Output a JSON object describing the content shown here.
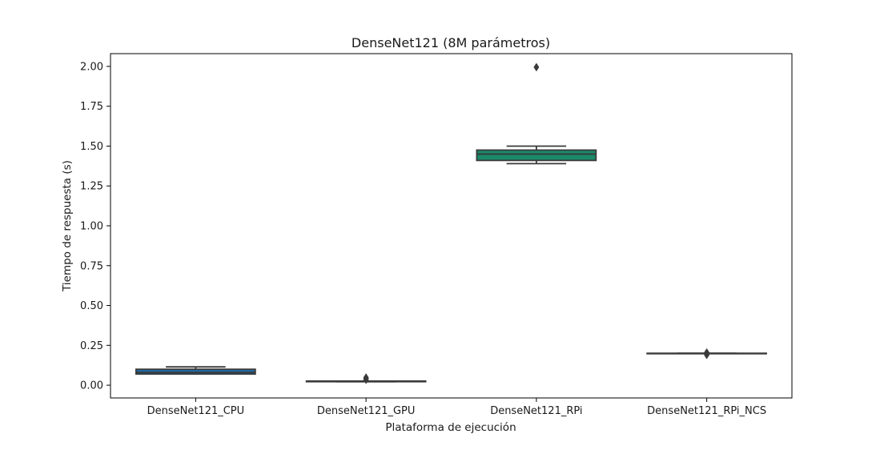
{
  "chart_data": {
    "type": "box",
    "title": "DenseNet121 (8M parámetros)",
    "xlabel": "Plataforma de ejecución",
    "ylabel": "Tiempo de respuesta (s)",
    "ylim": [
      -0.08,
      2.08
    ],
    "yticks": [
      "0.00",
      "0.25",
      "0.50",
      "0.75",
      "1.00",
      "1.25",
      "1.50",
      "1.75",
      "2.00"
    ],
    "grid": false,
    "categories": [
      "DenseNet121_CPU",
      "DenseNet121_GPU",
      "DenseNet121_RPi",
      "DenseNet121_RPi_NCS"
    ],
    "boxes": [
      {
        "category": "DenseNet121_CPU",
        "color": "#1f6aa5",
        "whisker_low": 0.07,
        "q1": 0.07,
        "median": 0.08,
        "q3": 0.1,
        "whisker_high": 0.115,
        "outliers": []
      },
      {
        "category": "DenseNet121_GPU",
        "color": "#1a9c8c",
        "whisker_low": 0.022,
        "q1": 0.022,
        "median": 0.024,
        "q3": 0.026,
        "whisker_high": 0.026,
        "outliers": [
          0.034,
          0.042,
          0.048
        ]
      },
      {
        "category": "DenseNet121_RPi",
        "color": "#1a8a6a",
        "whisker_low": 1.39,
        "q1": 1.41,
        "median": 1.45,
        "q3": 1.475,
        "whisker_high": 1.5,
        "outliers": [
          1.995
        ]
      },
      {
        "category": "DenseNet121_RPi_NCS",
        "color": "#1f9a6a",
        "whisker_low": 0.2,
        "q1": 0.2,
        "median": 0.2,
        "q3": 0.2,
        "whisker_high": 0.2,
        "outliers": [
          0.19,
          0.205
        ]
      }
    ]
  }
}
